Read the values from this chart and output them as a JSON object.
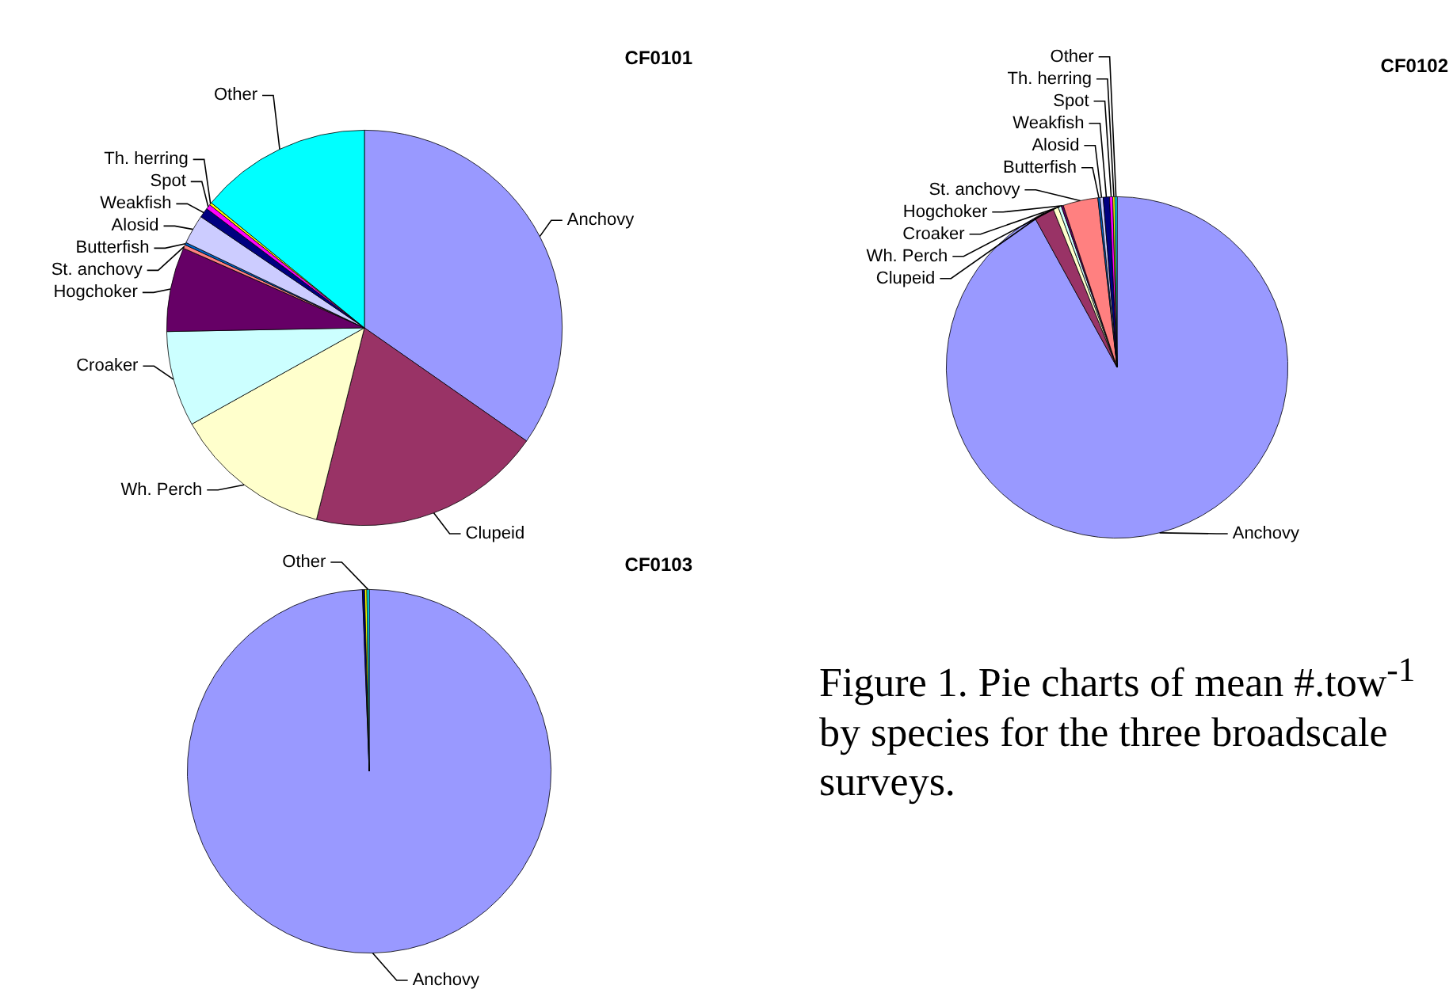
{
  "chart_data": [
    {
      "type": "pie",
      "title": "CF0101",
      "legend": false,
      "categories": [
        "Anchovy",
        "Clupeid",
        "Wh. Perch",
        "Croaker",
        "Hogchoker",
        "St. anchovy",
        "Butterfish",
        "Alosid",
        "Weakfish",
        "Spot",
        "Th. herring",
        "Other"
      ],
      "values": [
        34.7,
        19.2,
        13,
        7.8,
        6.9,
        0.3,
        0.2,
        2.4,
        0.8,
        0.4,
        0.2,
        14.1
      ],
      "colors": [
        "#9999ff",
        "#993366",
        "#ffffcc",
        "#ccffff",
        "#660066",
        "#ff8080",
        "#0066cc",
        "#ccccff",
        "#000080",
        "#ff00ff",
        "#ffff00",
        "#00ffff"
      ]
    },
    {
      "type": "pie",
      "title": "CF0102",
      "legend": false,
      "categories": [
        "Anchovy",
        "Clupeid",
        "Wh. Perch",
        "Croaker",
        "Hogchoker",
        "St. anchovy",
        "Butterfish",
        "Alosid",
        "Weakfish",
        "Spot",
        "Th. herring",
        "Other"
      ],
      "values": [
        92,
        1.9,
        0.5,
        0.3,
        0.2,
        3.3,
        0.2,
        0.3,
        0.6,
        0.3,
        0.2,
        0.2
      ],
      "colors": [
        "#9999ff",
        "#993366",
        "#ffffcc",
        "#ccffff",
        "#660066",
        "#ff8080",
        "#0066cc",
        "#ccccff",
        "#000080",
        "#ff00ff",
        "#ffff00",
        "#00ffff"
      ]
    },
    {
      "type": "pie",
      "title": "CF0103",
      "legend": false,
      "categories": [
        "Anchovy",
        null,
        null,
        "Other"
      ],
      "values": [
        99.4,
        0.2,
        0.2,
        0.2
      ],
      "colors": [
        "#9999ff",
        "#000080",
        "#ffff00",
        "#00ffff"
      ],
      "annotations": [
        "Figure 1.  Pie charts of mean #.tow$^{-1}$ by species for the three broadscale surveys."
      ]
    }
  ]
}
